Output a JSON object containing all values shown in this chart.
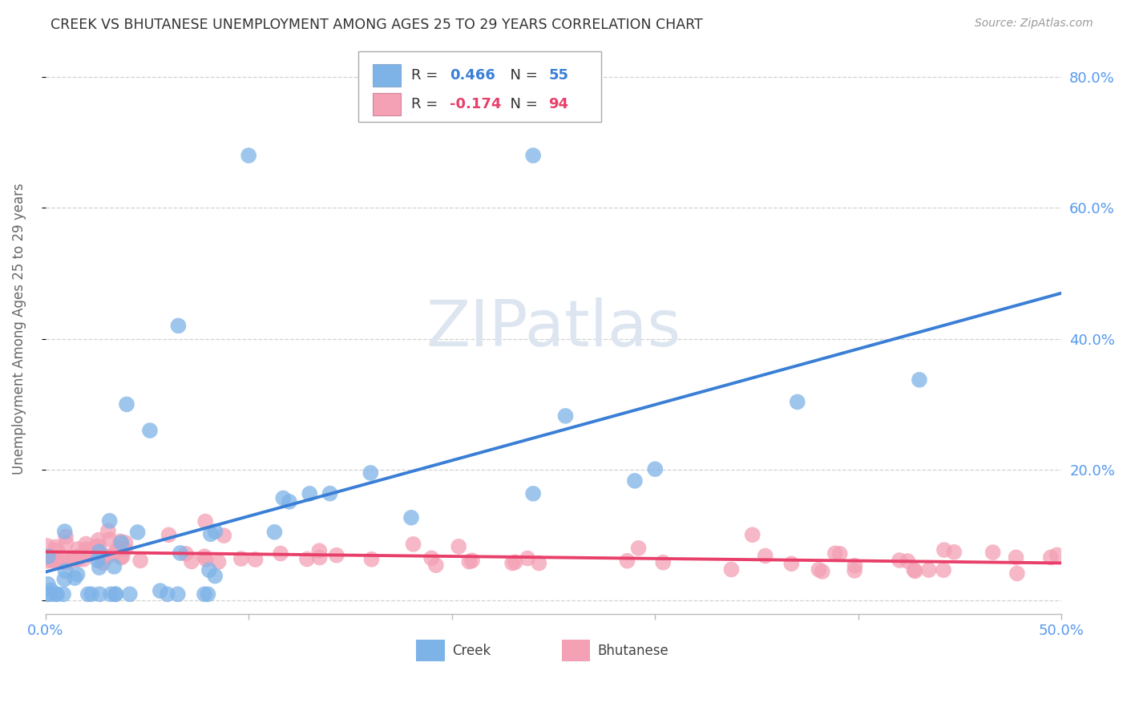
{
  "title": "CREEK VS BHUTANESE UNEMPLOYMENT AMONG AGES 25 TO 29 YEARS CORRELATION CHART",
  "source": "Source: ZipAtlas.com",
  "ylabel": "Unemployment Among Ages 25 to 29 years",
  "xlim": [
    0.0,
    0.5
  ],
  "ylim": [
    -0.02,
    0.85
  ],
  "creek_R": 0.466,
  "creek_N": 55,
  "bhutanese_R": -0.174,
  "bhutanese_N": 94,
  "creek_color": "#7EB3E8",
  "bhutanese_color": "#F4A0B5",
  "creek_line_color": "#3a7fd5",
  "bhutanese_line_color": "#e8406a",
  "creek_slope": 0.72,
  "creek_intercept": 0.025,
  "bhutanese_slope": -0.035,
  "bhutanese_intercept": 0.058,
  "background_color": "#ffffff",
  "grid_color": "#cccccc",
  "title_color": "#333333",
  "right_ytick_color": "#5599ee",
  "xtick_color": "#5599ee"
}
